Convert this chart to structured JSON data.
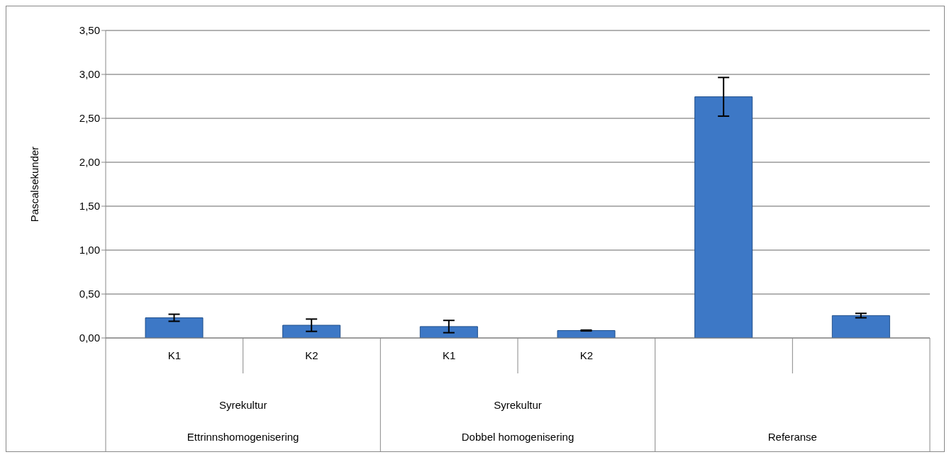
{
  "chart_data": {
    "type": "bar",
    "ylabel": "Pascalsekunder",
    "categories": [
      "K1",
      "K2",
      "K1",
      "K2",
      null,
      null
    ],
    "values": [
      0.23,
      0.145,
      0.13,
      0.085,
      2.745,
      0.255
    ],
    "errors": [
      0.04,
      0.07,
      0.07,
      0.005,
      0.22,
      0.025
    ],
    "color": "#3d78c6",
    "ylim": [
      0,
      3.5
    ],
    "yticks": [
      {
        "value": 0,
        "label": "0,00"
      },
      {
        "value": 0.5,
        "label": "0,50"
      },
      {
        "value": 1,
        "label": "1,00"
      },
      {
        "value": 1.5,
        "label": "1,50"
      },
      {
        "value": 2,
        "label": "2,00"
      },
      {
        "value": 2.5,
        "label": "2,50"
      },
      {
        "value": 3,
        "label": "3,00"
      },
      {
        "value": 3.5,
        "label": "3,50"
      }
    ],
    "grid": "y",
    "annotations": [
      "Syrekultur",
      "Syrekultur",
      "Ettrinnshomogenisering",
      "Dobbel homogenisering",
      "Referanse"
    ]
  }
}
